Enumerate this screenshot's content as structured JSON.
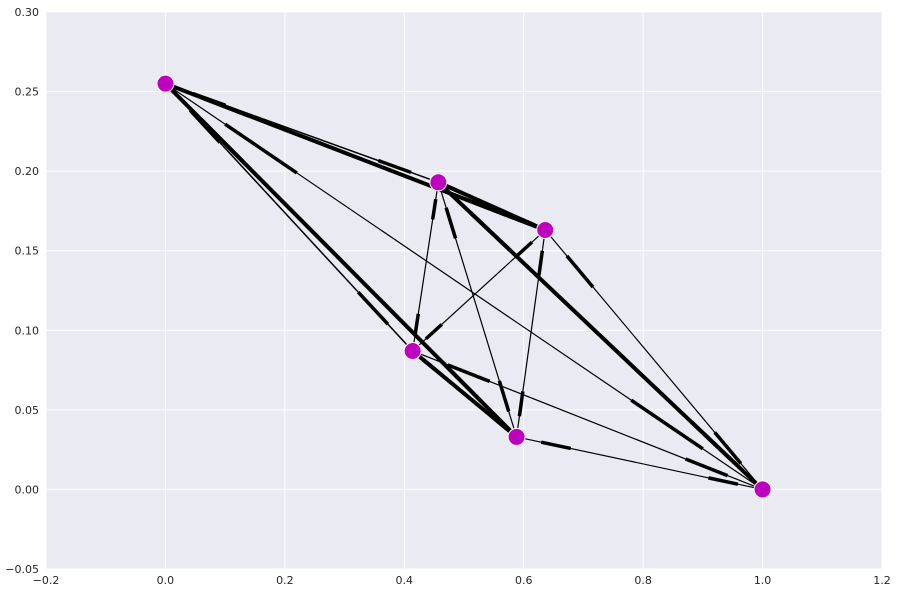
{
  "chart_data": {
    "type": "scatter",
    "title": "",
    "xlabel": "",
    "ylabel": "",
    "xlim": [
      -0.2,
      1.2
    ],
    "ylim": [
      -0.05,
      0.3
    ],
    "grid": true,
    "x_ticks": [
      -0.2,
      0.0,
      0.2,
      0.4,
      0.6,
      0.8,
      1.0,
      1.2
    ],
    "x_tick_labels": [
      "−0.2",
      "0.0",
      "0.2",
      "0.4",
      "0.6",
      "0.8",
      "1.0",
      "1.2"
    ],
    "y_ticks": [
      -0.05,
      0.0,
      0.05,
      0.1,
      0.15,
      0.2,
      0.25,
      0.3
    ],
    "y_tick_labels": [
      "−0.05",
      "0.00",
      "0.05",
      "0.10",
      "0.15",
      "0.20",
      "0.25",
      "0.30"
    ],
    "nodes": [
      {
        "x": 0.0,
        "y": 0.255
      },
      {
        "x": 0.457,
        "y": 0.193
      },
      {
        "x": 0.636,
        "y": 0.163
      },
      {
        "x": 0.414,
        "y": 0.087
      },
      {
        "x": 0.588,
        "y": 0.033
      },
      {
        "x": 1.0,
        "y": 0.0
      }
    ],
    "edges": [
      {
        "from": 0,
        "to": 1,
        "weight": 1.5
      },
      {
        "from": 0,
        "to": 2,
        "weight": 4
      },
      {
        "from": 0,
        "to": 3,
        "weight": 1.5
      },
      {
        "from": 0,
        "to": 4,
        "weight": 4
      },
      {
        "from": 0,
        "to": 5,
        "weight": 1.2
      },
      {
        "from": 1,
        "to": 2,
        "weight": 4
      },
      {
        "from": 1,
        "to": 3,
        "weight": 1.2
      },
      {
        "from": 1,
        "to": 4,
        "weight": 1.2
      },
      {
        "from": 1,
        "to": 5,
        "weight": 4
      },
      {
        "from": 2,
        "to": 3,
        "weight": 1.2
      },
      {
        "from": 2,
        "to": 4,
        "weight": 1.2
      },
      {
        "from": 2,
        "to": 5,
        "weight": 1.2
      },
      {
        "from": 3,
        "to": 4,
        "weight": 4
      },
      {
        "from": 3,
        "to": 5,
        "weight": 1.2
      },
      {
        "from": 4,
        "to": 5,
        "weight": 1.2
      }
    ],
    "colors": {
      "background": "#eaeaf2",
      "grid": "#ffffff",
      "edge": "#000000",
      "node": "#bf00bf",
      "node_edge": "#ffffff"
    }
  }
}
